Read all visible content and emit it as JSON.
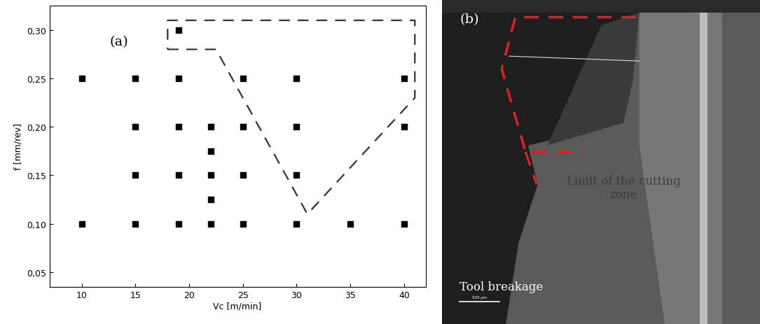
{
  "chart_data": {
    "type": "scatter",
    "annotation": "(a)",
    "x_label": "Vc [m/min]",
    "y_label": "f [mm/rev]",
    "x": [
      19,
      10,
      15,
      19,
      25,
      30,
      40,
      15,
      19,
      22,
      25,
      30,
      40,
      22,
      15,
      19,
      22,
      25,
      30,
      22,
      10,
      15,
      19,
      22,
      25,
      30,
      35,
      40
    ],
    "y": [
      0.3,
      0.25,
      0.25,
      0.25,
      0.25,
      0.25,
      0.25,
      0.2,
      0.2,
      0.2,
      0.2,
      0.2,
      0.2,
      0.175,
      0.15,
      0.15,
      0.15,
      0.15,
      0.15,
      0.125,
      0.1,
      0.1,
      0.1,
      0.1,
      0.1,
      0.1,
      0.1,
      0.1
    ],
    "color": "#000000",
    "marker": "square",
    "xlim": [
      7,
      42
    ],
    "ylim": [
      0.035,
      0.325
    ],
    "xticks": [
      10,
      15,
      20,
      25,
      30,
      35,
      40
    ],
    "yticks": [
      {
        "value": 0.05,
        "label": "0,05"
      },
      {
        "value": 0.1,
        "label": "0,10"
      },
      {
        "value": 0.15,
        "label": "0,15"
      },
      {
        "value": 0.2,
        "label": "0,20"
      },
      {
        "value": 0.25,
        "label": "0,25"
      },
      {
        "value": 0.3,
        "label": "0,30"
      }
    ],
    "boundary": {
      "x": [
        18,
        22.5,
        31,
        41,
        41,
        18,
        18
      ],
      "y": [
        0.28,
        0.28,
        0.11,
        0.23,
        0.31,
        0.31,
        0.28
      ],
      "line_style": "dashed",
      "color": "#333333"
    }
  },
  "image_panel": {
    "label": "(b)",
    "texts": [
      "Limit of the cutting\nzone",
      "Tool breakage"
    ],
    "scale_bar": "500 µm"
  }
}
